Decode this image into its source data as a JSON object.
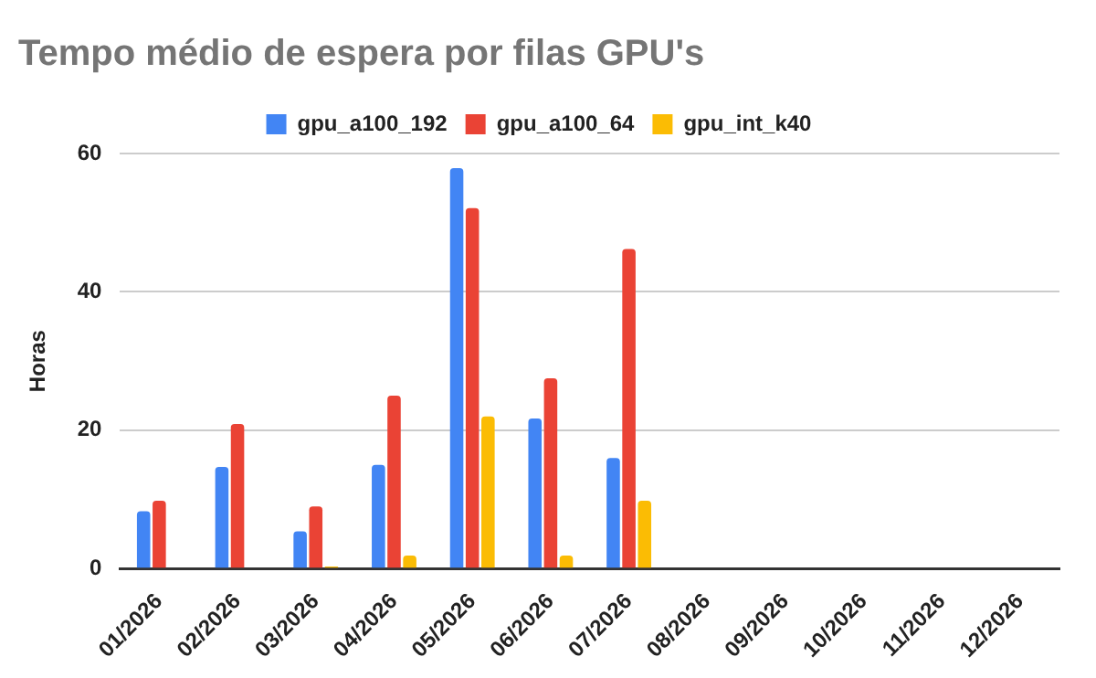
{
  "chart_data": {
    "type": "bar",
    "title": "Tempo médio de espera por filas GPU's",
    "ylabel": "Horas",
    "categories": [
      "01/2026",
      "02/2026",
      "03/2026",
      "04/2026",
      "05/2026",
      "06/2026",
      "07/2026",
      "08/2026",
      "09/2026",
      "10/2026",
      "11/2026",
      "12/2026"
    ],
    "series": [
      {
        "name": "gpu_a100_192",
        "color": "#4285f4",
        "values": [
          8.3,
          14.7,
          5.4,
          15.0,
          57.9,
          21.7,
          16.0,
          null,
          null,
          null,
          null,
          null
        ]
      },
      {
        "name": "gpu_a100_64",
        "color": "#ea4335",
        "values": [
          9.8,
          20.9,
          9.0,
          25.0,
          52.1,
          27.5,
          46.2,
          null,
          null,
          null,
          null,
          null
        ]
      },
      {
        "name": "gpu_int_k40",
        "color": "#fbbc04",
        "values": [
          null,
          null,
          0.3,
          1.9,
          22.0,
          1.9,
          9.8,
          null,
          null,
          null,
          null,
          null
        ]
      }
    ],
    "ylim": [
      0,
      60
    ],
    "yticks": [
      0,
      20,
      40,
      60
    ],
    "grid": "y",
    "legend": "top"
  }
}
